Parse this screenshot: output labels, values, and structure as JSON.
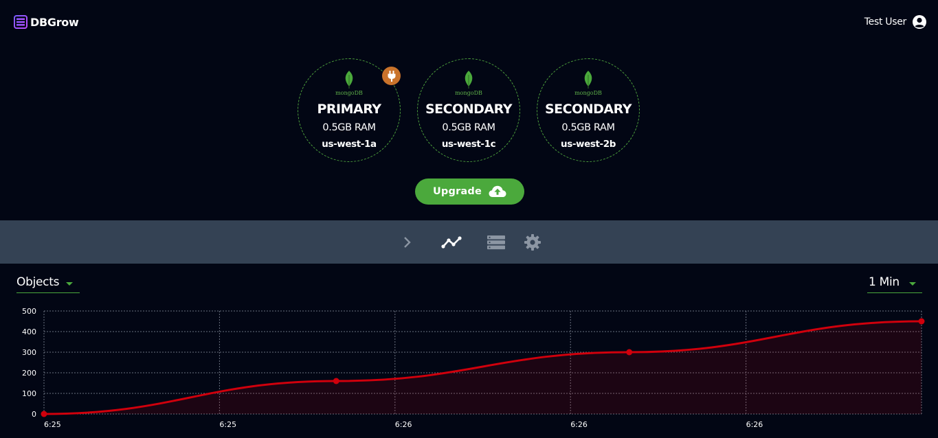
{
  "header": {
    "brand": "DBGrow",
    "user_name": "Test User"
  },
  "nodes": [
    {
      "brand": "mongoDB",
      "role": "PRIMARY",
      "ram": "0.5GB RAM",
      "zone": "us-west-1a",
      "badge": "plug-icon"
    },
    {
      "brand": "mongoDB",
      "role": "SECONDARY",
      "ram": "0.5GB RAM",
      "zone": "us-west-1c"
    },
    {
      "brand": "mongoDB",
      "role": "SECONDARY",
      "ram": "0.5GB RAM",
      "zone": "us-west-2b"
    }
  ],
  "upgrade": {
    "label": "Upgrade",
    "icon": "cloud-upload-icon"
  },
  "toolbar": {
    "icons": [
      "chevron-right-icon",
      "line-chart-icon",
      "server-list-icon",
      "gear-icon"
    ],
    "active": "line-chart-icon"
  },
  "controls": {
    "metric": "Objects",
    "range": "1 Min"
  },
  "colors": {
    "background": "#020614",
    "toolbar": "#344254",
    "accent_green": "#4ba93c",
    "badge_orange": "#c9732b",
    "series_red": "#d0000c"
  },
  "chart_data": {
    "type": "area",
    "x_ticks": [
      "6:25",
      "6:25",
      "6:26",
      "6:26",
      "6:26"
    ],
    "y_ticks": [
      "0",
      "100",
      "200",
      "300",
      "400",
      "500"
    ],
    "ylim": [
      0,
      500
    ],
    "grid": true,
    "series": [
      {
        "x": [
          0,
          0.333,
          0.667,
          1.0
        ],
        "values": [
          0,
          160,
          300,
          450
        ]
      }
    ]
  }
}
